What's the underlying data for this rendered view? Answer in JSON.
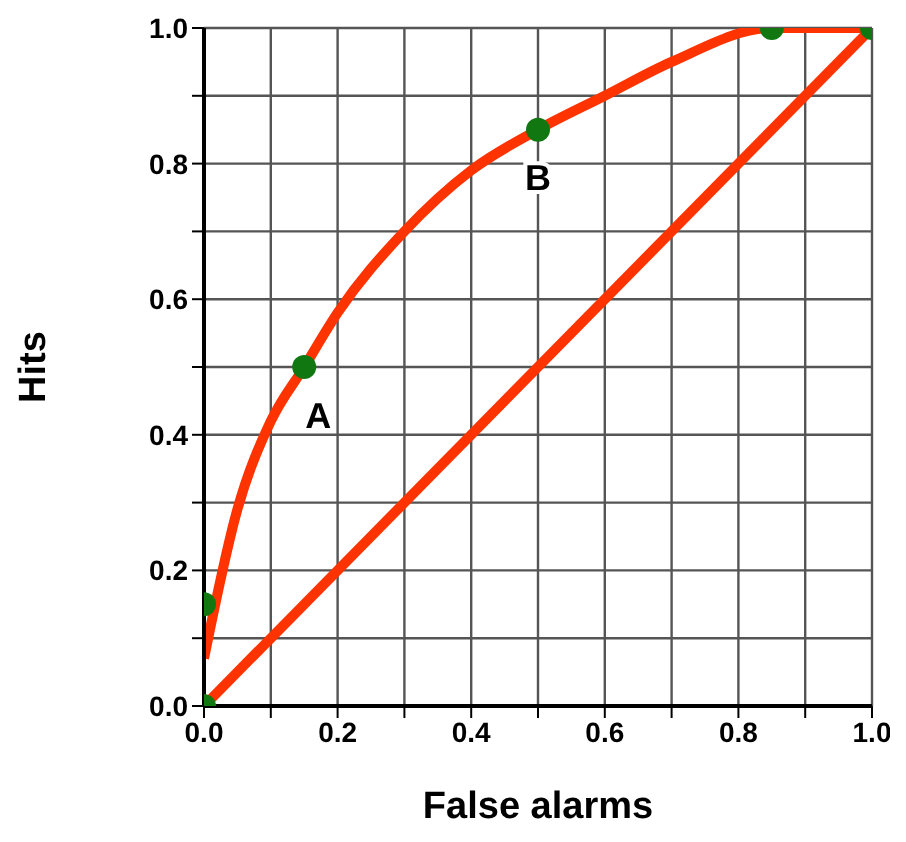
{
  "chart_data": {
    "type": "line",
    "xlabel": "False alarms",
    "ylabel": "Hits",
    "grid": true,
    "xlim": [
      0,
      1
    ],
    "ylim": [
      0,
      1
    ],
    "xticks": [
      {
        "value": 0,
        "label": "0.0"
      },
      {
        "value": 0.1,
        "label": null
      },
      {
        "value": 0.2,
        "label": "0.2"
      },
      {
        "value": 0.3,
        "label": null
      },
      {
        "value": 0.4,
        "label": "0.4"
      },
      {
        "value": 0.5,
        "label": null
      },
      {
        "value": 0.6,
        "label": "0.6"
      },
      {
        "value": 0.7,
        "label": null
      },
      {
        "value": 0.8,
        "label": "0.8"
      },
      {
        "value": 0.9,
        "label": null
      },
      {
        "value": 1,
        "label": "1.0"
      }
    ],
    "yticks": [
      {
        "value": 0,
        "label": "0.0"
      },
      {
        "value": 0.1,
        "label": null
      },
      {
        "value": 0.2,
        "label": "0.2"
      },
      {
        "value": 0.3,
        "label": null
      },
      {
        "value": 0.4,
        "label": "0.4"
      },
      {
        "value": 0.5,
        "label": null
      },
      {
        "value": 0.6,
        "label": "0.6"
      },
      {
        "value": 0.7,
        "label": null
      },
      {
        "value": 0.8,
        "label": "0.8"
      },
      {
        "value": 0.9,
        "label": null
      },
      {
        "value": 1,
        "label": "1.0"
      }
    ],
    "series": [
      {
        "color": "#ff3300",
        "x": [
          0,
          0.05,
          0.1,
          0.15,
          0.2,
          0.3,
          0.4,
          0.5,
          0.6,
          0.7,
          0.85,
          1
        ],
        "values": [
          0.07,
          0.29,
          0.42,
          0.5,
          0.58,
          0.7,
          0.79,
          0.85,
          0.9,
          0.95,
          1,
          1
        ]
      },
      {
        "color": "#ff3300",
        "x": [
          0,
          1
        ],
        "values": [
          0,
          1
        ]
      },
      {
        "type": "scatter",
        "color": "#117711",
        "marker": "circle",
        "x": [
          0,
          0,
          0.15,
          0.5,
          0.85,
          1
        ],
        "values": [
          0,
          0.15,
          0.5,
          0.85,
          1,
          1
        ]
      }
    ],
    "annotations": [
      {
        "text": "A",
        "x": 0.15,
        "y": 0.5
      },
      {
        "text": "B",
        "x": 0.5,
        "y": 0.85
      }
    ]
  }
}
